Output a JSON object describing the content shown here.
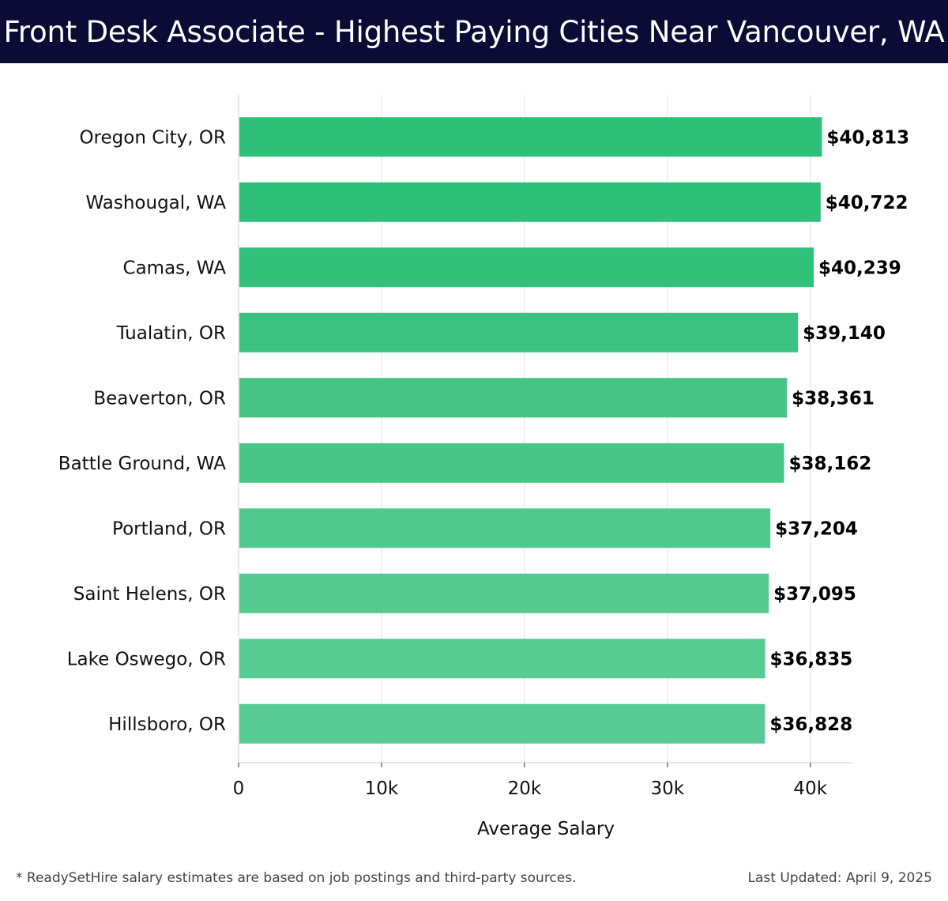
{
  "header": {
    "title": "Front Desk Associate - Highest Paying Cities Near Vancouver, WA",
    "background": "#0b0c35"
  },
  "footer": {
    "note": "* ReadySetHire salary estimates are based on job postings and third-party sources.",
    "updated": "Last Updated: April 9, 2025"
  },
  "chart_data": {
    "type": "bar",
    "orientation": "horizontal",
    "categories": [
      "Oregon City, OR",
      "Washougal, WA",
      "Camas, WA",
      "Tualatin, OR",
      "Beaverton, OR",
      "Battle Ground, WA",
      "Portland, OR",
      "Saint Helens, OR",
      "Lake Oswego, OR",
      "Hillsboro, OR"
    ],
    "values": [
      40813,
      40722,
      40239,
      39140,
      38361,
      38162,
      37204,
      37095,
      36835,
      36828
    ],
    "value_labels": [
      "$40,813",
      "$40,722",
      "$40,239",
      "$39,140",
      "$38,361",
      "$38,162",
      "$37,204",
      "$37,095",
      "$36,835",
      "$36,828"
    ],
    "colors": [
      "#2ebf78",
      "#2ebf78",
      "#32c17b",
      "#3cc280",
      "#45c485",
      "#48c586",
      "#51c98e",
      "#54ca90",
      "#56cb92",
      "#57cb93"
    ],
    "xlabel": "Average Salary",
    "xlim": [
      0,
      43000
    ],
    "xticks": [
      0,
      10000,
      20000,
      30000,
      40000
    ],
    "xtick_labels": [
      "0",
      "10k",
      "20k",
      "30k",
      "40k"
    ],
    "grid": "vertical"
  }
}
